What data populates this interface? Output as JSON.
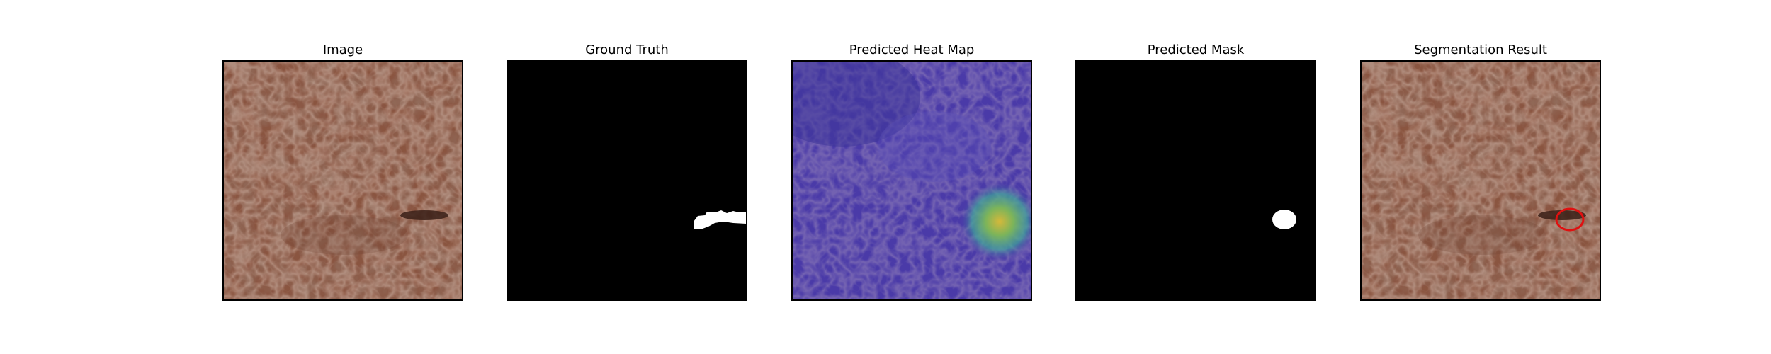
{
  "panels": [
    {
      "title": "Image",
      "icon": "leather-photo-image"
    },
    {
      "title": "Ground Truth",
      "icon": "binary-mask-image"
    },
    {
      "title": "Predicted Heat Map",
      "icon": "heatmap-overlay-image"
    },
    {
      "title": "Predicted Mask",
      "icon": "binary-mask-image"
    },
    {
      "title": "Segmentation Result",
      "icon": "leather-photo-with-outline-image"
    }
  ],
  "colors": {
    "leather_base": "#8a5440",
    "leather_dark": "#6e4232",
    "defect": "#3a2018",
    "mask_background": "#000000",
    "mask_foreground": "#ffffff",
    "heatmap_low": "#4a3aa8",
    "heatmap_high": "#c8b43c",
    "outline": "#e01010"
  }
}
